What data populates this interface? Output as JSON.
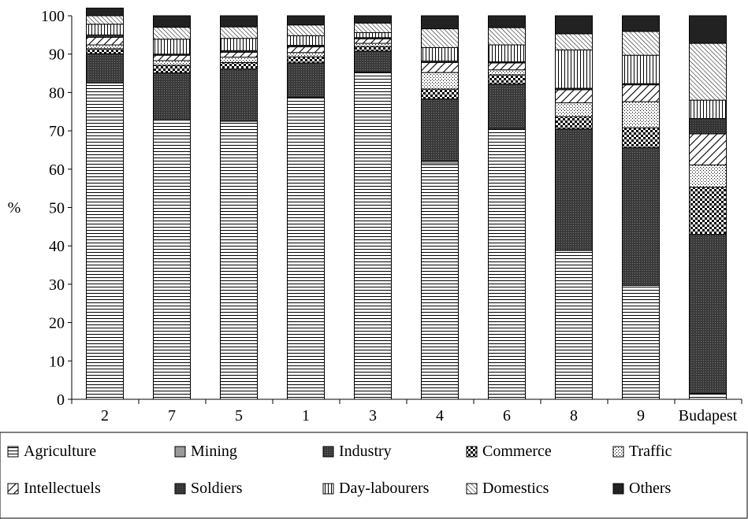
{
  "chart_data": {
    "type": "bar",
    "stacked": true,
    "title": "",
    "xlabel": "",
    "ylabel": "%",
    "ylim": [
      0,
      100
    ],
    "y_ticks": [
      0,
      10,
      20,
      30,
      40,
      50,
      60,
      70,
      80,
      90,
      100
    ],
    "grid": false,
    "legend_position": "bottom",
    "categories": [
      "2",
      "7",
      "5",
      "1",
      "3",
      "4",
      "6",
      "8",
      "9",
      "Budapest"
    ],
    "series": [
      {
        "name": "Agriculture",
        "pattern": "horizontal",
        "values": [
          82.5,
          72.8,
          72.5,
          78.8,
          85.3,
          61.2,
          70.6,
          38.8,
          29.7,
          1.5
        ]
      },
      {
        "name": "Mining",
        "pattern": "solid-gray",
        "values": [
          0,
          0,
          0,
          0,
          0,
          0.9,
          0,
          0,
          0,
          0
        ]
      },
      {
        "name": "Industry",
        "pattern": "dark-dotted",
        "values": [
          7.6,
          12.3,
          13.6,
          8.9,
          5.5,
          16.2,
          11.6,
          31.7,
          35.9,
          41.5
        ]
      },
      {
        "name": "Commerce",
        "pattern": "checker",
        "values": [
          1.3,
          2.0,
          1.7,
          1.6,
          1.2,
          2.6,
          2.4,
          3.2,
          5.2,
          12.3
        ]
      },
      {
        "name": "Traffic",
        "pattern": "light-dotted",
        "values": [
          1.0,
          1.2,
          1.4,
          1.1,
          0.8,
          4.3,
          1.3,
          3.6,
          6.8,
          5.8
        ]
      },
      {
        "name": "Intellectuels",
        "pattern": "diagonal",
        "values": [
          2.0,
          1.4,
          1.3,
          1.5,
          1.2,
          2.6,
          1.8,
          3.4,
          4.4,
          8.1
        ]
      },
      {
        "name": "Soldiers",
        "pattern": "dark-dense",
        "values": [
          0.6,
          0.3,
          0.4,
          0.4,
          0.3,
          0.4,
          0.3,
          0.4,
          0.3,
          4.0
        ]
      },
      {
        "name": "Day-labourers",
        "pattern": "vertical",
        "values": [
          2.8,
          3.9,
          3.2,
          2.5,
          1.3,
          3.5,
          4.4,
          10.0,
          7.4,
          4.8
        ]
      },
      {
        "name": "Domestics",
        "pattern": "diagonal-dense",
        "values": [
          2.2,
          3.1,
          3.0,
          2.8,
          2.5,
          4.9,
          4.5,
          4.2,
          6.2,
          14.8
        ]
      },
      {
        "name": "Others",
        "pattern": "solid-dark",
        "values": [
          2.0,
          3.0,
          2.9,
          2.4,
          1.9,
          3.4,
          3.1,
          4.7,
          4.1,
          7.2
        ]
      }
    ]
  }
}
